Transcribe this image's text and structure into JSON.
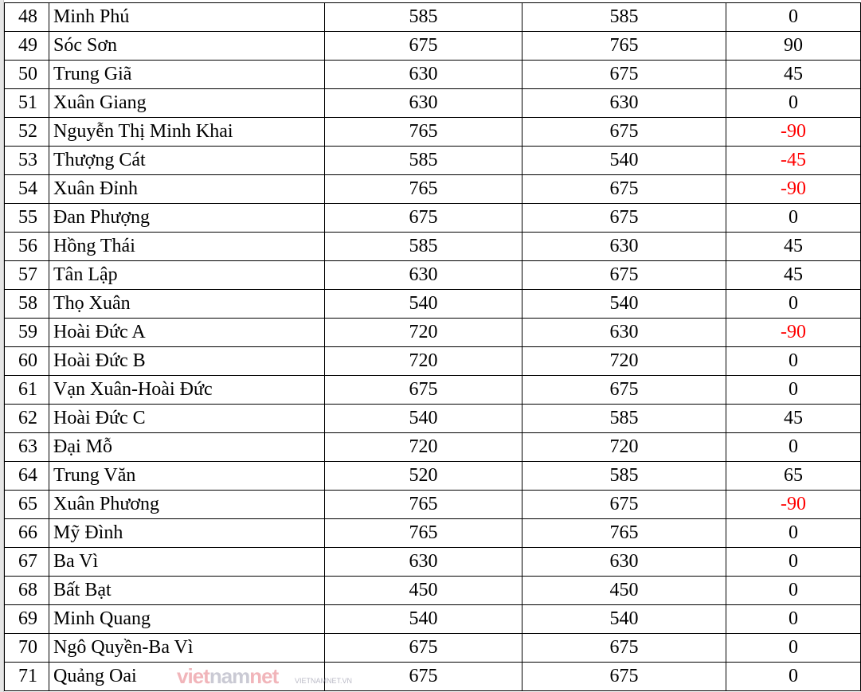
{
  "colors": {
    "negative": "#ff0000",
    "text": "#000000"
  },
  "rows": [
    {
      "no": "48",
      "name": "Minh Phú",
      "a": "585",
      "b": "585",
      "diff": "0"
    },
    {
      "no": "49",
      "name": "Sóc Sơn",
      "a": "675",
      "b": "765",
      "diff": "90"
    },
    {
      "no": "50",
      "name": "Trung Giã",
      "a": "630",
      "b": "675",
      "diff": "45"
    },
    {
      "no": "51",
      "name": "Xuân Giang",
      "a": "630",
      "b": "630",
      "diff": "0"
    },
    {
      "no": "52",
      "name": "Nguyễn Thị Minh Khai",
      "a": "765",
      "b": "675",
      "diff": "-90"
    },
    {
      "no": "53",
      "name": "Thượng Cát",
      "a": "585",
      "b": "540",
      "diff": "-45"
    },
    {
      "no": "54",
      "name": "Xuân Đỉnh",
      "a": "765",
      "b": "675",
      "diff": "-90"
    },
    {
      "no": "55",
      "name": "Đan Phượng",
      "a": "675",
      "b": "675",
      "diff": "0"
    },
    {
      "no": "56",
      "name": "Hồng Thái",
      "a": "585",
      "b": "630",
      "diff": "45"
    },
    {
      "no": "57",
      "name": "Tân Lập",
      "a": "630",
      "b": "675",
      "diff": "45"
    },
    {
      "no": "58",
      "name": "Thọ Xuân",
      "a": "540",
      "b": "540",
      "diff": "0"
    },
    {
      "no": "59",
      "name": "Hoài Đức A",
      "a": "720",
      "b": "630",
      "diff": "-90"
    },
    {
      "no": "60",
      "name": "Hoài Đức B",
      "a": "720",
      "b": "720",
      "diff": "0"
    },
    {
      "no": "61",
      "name": "Vạn Xuân-Hoài Đức",
      "a": "675",
      "b": "675",
      "diff": "0"
    },
    {
      "no": "62",
      "name": "Hoài Đức C",
      "a": "540",
      "b": "585",
      "diff": "45"
    },
    {
      "no": "63",
      "name": "Đại Mỗ",
      "a": "720",
      "b": "720",
      "diff": "0"
    },
    {
      "no": "64",
      "name": "Trung Văn",
      "a": "520",
      "b": "585",
      "diff": "65"
    },
    {
      "no": "65",
      "name": "Xuân Phương",
      "a": "765",
      "b": "675",
      "diff": "-90"
    },
    {
      "no": "66",
      "name": "Mỹ Đình",
      "a": "765",
      "b": "765",
      "diff": "0"
    },
    {
      "no": "67",
      "name": "Ba Vì",
      "a": "630",
      "b": "630",
      "diff": "0"
    },
    {
      "no": "68",
      "name": "Bất Bạt",
      "a": "450",
      "b": "450",
      "diff": "0"
    },
    {
      "no": "69",
      "name": "Minh Quang",
      "a": "540",
      "b": "540",
      "diff": "0"
    },
    {
      "no": "70",
      "name": "Ngô Quyền-Ba Vì",
      "a": "675",
      "b": "675",
      "diff": "0"
    },
    {
      "no": "71",
      "name": "Quảng Oai",
      "a": "675",
      "b": "675",
      "diff": "0"
    }
  ],
  "watermark": {
    "logo": "vietnamnet",
    "url": "VIETNAMNET.VN"
  }
}
